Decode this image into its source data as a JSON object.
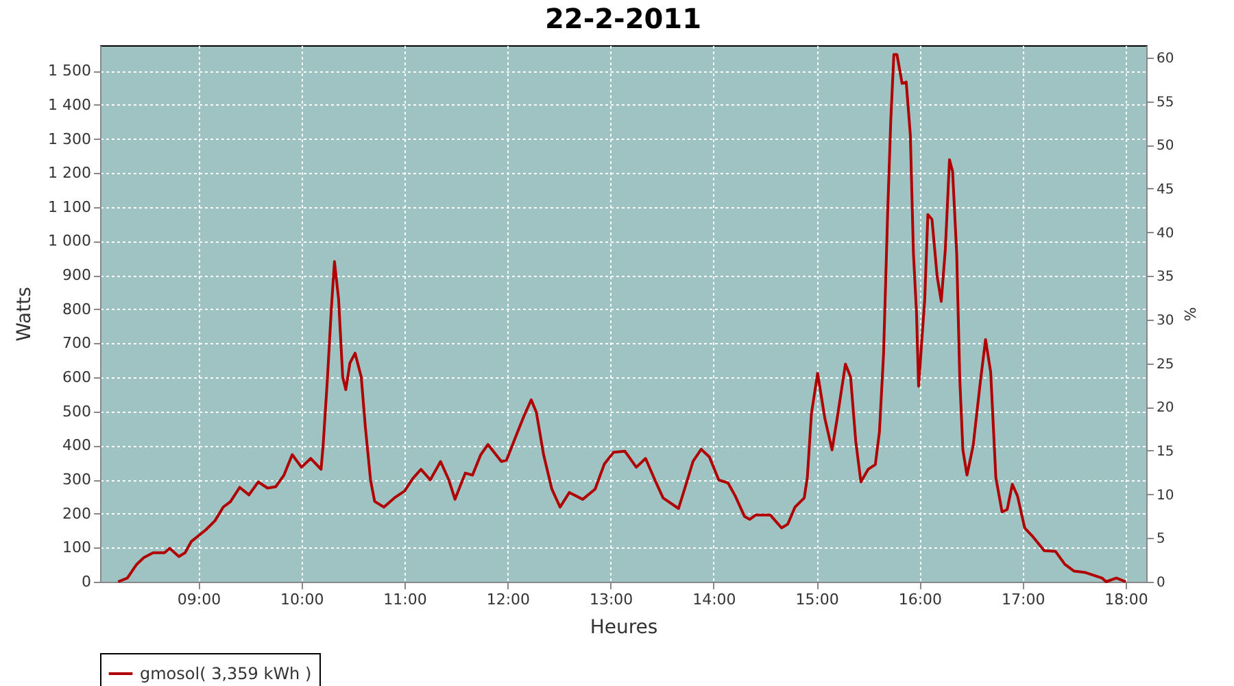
{
  "chart_data": {
    "type": "line",
    "title": "22-2-2011",
    "xlabel": "Heures",
    "ylabel": "Watts",
    "y2label": "%",
    "xlim": [
      8.045,
      18.2
    ],
    "xticks": [
      {
        "value": 9,
        "label": "09:00"
      },
      {
        "value": 10,
        "label": "10:00"
      },
      {
        "value": 11,
        "label": "11:00"
      },
      {
        "value": 12,
        "label": "12:00"
      },
      {
        "value": 13,
        "label": "13:00"
      },
      {
        "value": 14,
        "label": "14:00"
      },
      {
        "value": 15,
        "label": "15:00"
      },
      {
        "value": 16,
        "label": "16:00"
      },
      {
        "value": 17,
        "label": "17:00"
      },
      {
        "value": 18,
        "label": "18:00"
      }
    ],
    "ylim": [
      0,
      1575
    ],
    "yticks": [
      0,
      100,
      200,
      300,
      400,
      500,
      600,
      700,
      800,
      900,
      {
        "value": 1000,
        "label": "1 000"
      },
      {
        "value": 1100,
        "label": "1 100"
      },
      {
        "value": 1200,
        "label": "1 200"
      },
      {
        "value": 1300,
        "label": "1 300"
      },
      {
        "value": 1400,
        "label": "1 400"
      },
      {
        "value": 1500,
        "label": "1 500"
      }
    ],
    "y2lim": [
      0,
      61.4
    ],
    "y2ticks": [
      0,
      5,
      10,
      15,
      20,
      25,
      30,
      35,
      40,
      45,
      50,
      55,
      60
    ],
    "grid": true,
    "legend": "bottom",
    "line_style": "solid",
    "marker": "none",
    "series": [
      {
        "name": "gmosol( 3,359 kWh )",
        "color": "#b00000",
        "x": [
          8.22,
          8.31,
          8.4,
          8.47,
          8.56,
          8.67,
          8.72,
          8.81,
          8.87,
          8.93,
          9.07,
          9.16,
          9.24,
          9.31,
          9.4,
          9.49,
          9.58,
          9.67,
          9.75,
          9.83,
          9.91,
          10.0,
          10.09,
          10.19,
          10.21,
          10.25,
          10.29,
          10.32,
          10.36,
          10.4,
          10.43,
          10.47,
          10.52,
          10.58,
          10.62,
          10.67,
          10.71,
          10.8,
          10.91,
          11.0,
          11.08,
          11.16,
          11.25,
          11.35,
          11.43,
          11.49,
          11.59,
          11.66,
          11.74,
          11.81,
          11.94,
          11.99,
          12.09,
          12.16,
          12.23,
          12.28,
          12.35,
          12.43,
          12.51,
          12.6,
          12.73,
          12.85,
          12.94,
          13.03,
          13.14,
          13.25,
          13.34,
          13.43,
          13.51,
          13.66,
          13.74,
          13.8,
          13.88,
          13.96,
          14.05,
          14.14,
          14.21,
          14.3,
          14.35,
          14.41,
          14.55,
          14.66,
          14.72,
          14.79,
          14.88,
          14.91,
          14.95,
          15.01,
          15.08,
          15.15,
          15.2,
          15.28,
          15.33,
          15.38,
          15.43,
          15.5,
          15.57,
          15.61,
          15.65,
          15.69,
          15.72,
          15.75,
          15.78,
          15.83,
          15.87,
          15.91,
          15.94,
          15.97,
          15.99,
          16.02,
          16.05,
          16.08,
          16.12,
          16.17,
          16.21,
          16.25,
          16.29,
          16.32,
          16.36,
          16.39,
          16.42,
          16.46,
          16.52,
          16.59,
          16.64,
          16.69,
          16.74,
          16.8,
          16.85,
          16.9,
          16.95,
          17.02,
          17.1,
          17.21,
          17.32,
          17.41,
          17.5,
          17.61,
          17.77,
          17.81,
          17.91,
          18.0
        ],
        "values": [
          0,
          11,
          51,
          71,
          85,
          85,
          98,
          74,
          85,
          118,
          152,
          179,
          219,
          235,
          277,
          255,
          293,
          275,
          279,
          313,
          373,
          336,
          362,
          330,
          400,
          588,
          803,
          940,
          830,
          601,
          564,
          642,
          671,
          601,
          454,
          299,
          236,
          219,
          248,
          266,
          303,
          330,
          299,
          353,
          299,
          242,
          319,
          313,
          373,
          403,
          353,
          357,
          434,
          487,
          534,
          497,
          373,
          272,
          219,
          262,
          242,
          272,
          346,
          380,
          383,
          336,
          362,
          299,
          246,
          215,
          293,
          353,
          389,
          366,
          299,
          290,
          252,
          192,
          183,
          196,
          196,
          158,
          169,
          219,
          246,
          306,
          494,
          612,
          480,
          387,
          480,
          639,
          601,
          413,
          293,
          330,
          344,
          440,
          668,
          1085,
          1353,
          1548,
          1548,
          1463,
          1467,
          1312,
          964,
          789,
          574,
          702,
          830,
          1078,
          1064,
          897,
          823,
          977,
          1239,
          1205,
          964,
          595,
          387,
          313,
          400,
          588,
          711,
          615,
          306,
          205,
          212,
          286,
          252,
          158,
          132,
          91,
          89,
          51,
          31,
          27,
          11,
          0,
          11,
          0
        ]
      }
    ]
  }
}
